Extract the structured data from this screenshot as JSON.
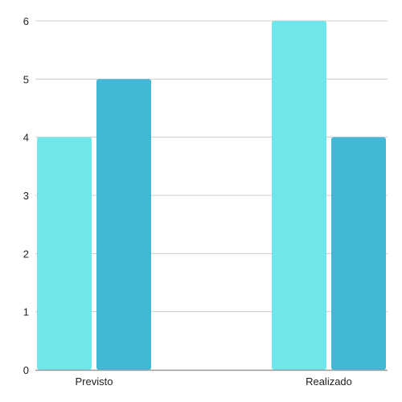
{
  "chart_data": {
    "type": "bar",
    "categories": [
      "Previsto",
      "Realizado"
    ],
    "series": [
      {
        "values": [
          4,
          6
        ],
        "color": "#6ee6ea"
      },
      {
        "values": [
          5,
          4
        ],
        "color": "#42b7d6"
      }
    ],
    "y_ticks": [
      "0",
      "1",
      "2",
      "3",
      "4",
      "5",
      "6"
    ],
    "ylim": [
      0,
      6
    ],
    "grid": true,
    "gridline_color": "#cccccc",
    "axis_color": "#999999"
  }
}
